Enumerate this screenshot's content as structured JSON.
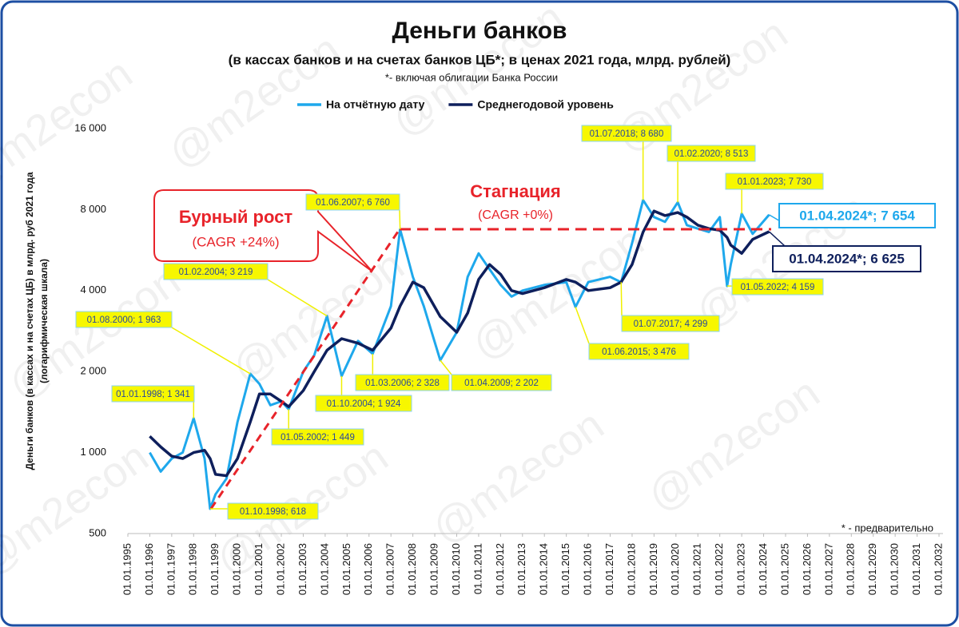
{
  "chart_data": {
    "type": "line",
    "title": "Деньги банков",
    "subtitle": "(в кассах банков и на счетах банков ЦБ*; в ценах 2021 года, млрд. рублей)",
    "note": "*- включая облигации Банка России",
    "footnote": "* - предварительно",
    "watermark": "@m2econ",
    "y_label": [
      "Деньги банков (в кассах и на счетах ЦБ) в млрд. руб 2021 года",
      "(логарифмическая шкала)"
    ],
    "annotations": {
      "growth": [
        "Бурный рост",
        "(CAGR +24%)"
      ],
      "stagnation": [
        "Стагнация",
        "(CAGR +0%)"
      ]
    },
    "log_scale": true,
    "xlim": [
      "01.01.1995",
      "01.01.2032"
    ],
    "xticks": [
      "01.01.1995",
      "01.01.1996",
      "01.01.1997",
      "01.01.1998",
      "01.01.1999",
      "01.01.2000",
      "01.01.2001",
      "01.01.2002",
      "01.01.2003",
      "01.01.2004",
      "01.01.2005",
      "01.01.2006",
      "01.01.2007",
      "01.01.2008",
      "01.01.2009",
      "01.01.2010",
      "01.01.2011",
      "01.01.2012",
      "01.01.2013",
      "01.01.2014",
      "01.01.2015",
      "01.01.2016",
      "01.01.2017",
      "01.01.2018",
      "01.01.2019",
      "01.01.2020",
      "01.01.2021",
      "01.01.2022",
      "01.01.2023",
      "01.01.2024",
      "01.01.2025",
      "01.01.2026",
      "01.01.2027",
      "01.01.2028",
      "01.01.2029",
      "01.01.2030",
      "01.01.2031",
      "01.01.2032"
    ],
    "ylim": [
      500,
      16000
    ],
    "yticks": [
      500,
      {
        "value": 1000,
        "label": "1 000"
      },
      {
        "value": 2000,
        "label": "2 000"
      },
      {
        "value": 4000,
        "label": "4 000"
      },
      {
        "value": 8000,
        "label": "8 000"
      },
      {
        "value": 16000,
        "label": "16 000"
      }
    ],
    "x": [
      "01.01.1996",
      "01.07.1996",
      "01.01.1997",
      "01.07.1997",
      "01.01.1998",
      "01.07.1998",
      "01.10.1998",
      "01.01.1999",
      "01.07.1999",
      "01.01.2000",
      "01.08.2000",
      "01.01.2001",
      "01.07.2001",
      "01.01.2002",
      "01.05.2002",
      "01.01.2003",
      "01.07.2003",
      "01.02.2004",
      "01.10.2004",
      "01.07.2005",
      "01.03.2006",
      "01.01.2007",
      "01.06.2007",
      "01.01.2008",
      "01.07.2008",
      "01.04.2009",
      "01.01.2010",
      "01.07.2010",
      "01.01.2011",
      "01.07.2011",
      "01.01.2012",
      "01.07.2012",
      "01.01.2013",
      "01.01.2014",
      "01.01.2015",
      "01.06.2015",
      "01.01.2016",
      "01.01.2017",
      "01.07.2017",
      "01.01.2018",
      "01.07.2018",
      "01.01.2019",
      "01.07.2019",
      "01.02.2020",
      "01.07.2020",
      "01.01.2021",
      "01.07.2021",
      "01.01.2022",
      "01.05.2022",
      "01.07.2022",
      "01.01.2023",
      "01.07.2023",
      "01.04.2024"
    ],
    "series": [
      {
        "name": "На отчётную дату",
        "color": "#1ea8ec",
        "values": [
          1000,
          850,
          950,
          1000,
          1341,
          950,
          618,
          700,
          800,
          1300,
          1963,
          1800,
          1500,
          1550,
          1449,
          2000,
          2300,
          3219,
          1924,
          2600,
          2328,
          3500,
          6760,
          4500,
          3500,
          2202,
          2800,
          4500,
          5500,
          4800,
          4200,
          3800,
          4000,
          4200,
          4300,
          3476,
          4300,
          4500,
          4299,
          6000,
          8680,
          7500,
          7200,
          8513,
          7000,
          6800,
          6600,
          7500,
          4159,
          5000,
          7730,
          6500,
          7654
        ],
        "value_labels": [
          null,
          null,
          null,
          null,
          "01.01.1998;  1 341",
          null,
          "01.10.1998;  618",
          null,
          null,
          null,
          "01.08.2000;  1 963",
          null,
          null,
          null,
          "01.05.2002;  1 449",
          null,
          null,
          "01.02.2004;  3 219",
          "01.10.2004;  1 924",
          null,
          "01.03.2006;  2 328",
          null,
          "01.06.2007;  6 760",
          null,
          null,
          "01.04.2009;  2 202",
          null,
          null,
          null,
          null,
          null,
          null,
          null,
          null,
          null,
          "01.06.2015;  3 476",
          null,
          null,
          "01.07.2017;  4 299",
          null,
          "01.07.2018;  8 680",
          null,
          null,
          "01.02.2020;  8 513",
          null,
          null,
          null,
          null,
          "01.05.2022;  4 159",
          null,
          "01.01.2023;  7 730",
          null,
          "01.04.2024*;  7 654"
        ]
      },
      {
        "name": "Среднегодовой уровень",
        "color": "#0e1f5c",
        "values": [
          1150,
          1050,
          970,
          950,
          1000,
          1020,
          950,
          830,
          820,
          950,
          1300,
          1650,
          1650,
          1550,
          1480,
          1700,
          2000,
          2400,
          2650,
          2550,
          2400,
          2900,
          3500,
          4300,
          4100,
          3200,
          2800,
          3300,
          4400,
          5000,
          4600,
          4000,
          3900,
          4100,
          4400,
          4300,
          4000,
          4100,
          4300,
          5000,
          6600,
          7900,
          7600,
          7800,
          7500,
          7000,
          6800,
          6700,
          6300,
          5900,
          5500,
          6200,
          6625
        ],
        "value_labels": [
          null,
          null,
          null,
          null,
          null,
          null,
          null,
          null,
          null,
          null,
          null,
          null,
          null,
          null,
          null,
          null,
          null,
          null,
          null,
          null,
          null,
          null,
          null,
          null,
          null,
          null,
          null,
          null,
          null,
          null,
          null,
          null,
          null,
          null,
          null,
          null,
          null,
          null,
          null,
          null,
          null,
          null,
          null,
          null,
          null,
          null,
          null,
          null,
          null,
          null,
          null,
          null,
          "01.04.2024*;  6 625"
        ]
      }
    ]
  }
}
